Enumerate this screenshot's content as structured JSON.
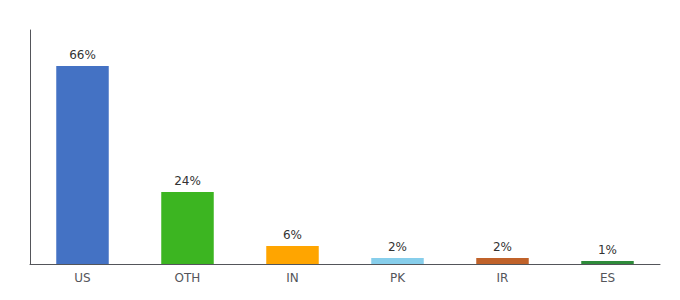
{
  "chart_data": {
    "type": "bar",
    "categories": [
      "US",
      "OTH",
      "IN",
      "PK",
      "IR",
      "ES"
    ],
    "values": [
      66,
      24,
      6,
      2,
      2,
      1
    ],
    "value_labels": [
      "66%",
      "24%",
      "6%",
      "2%",
      "2%",
      "1%"
    ],
    "colors": [
      "#4472C4",
      "#3CB521",
      "#FFA500",
      "#87CEEB",
      "#C0622A",
      "#2E8B3A"
    ],
    "ylim": [
      0,
      78
    ],
    "data_labels": true,
    "tick_labels": "x",
    "grid": false
  }
}
